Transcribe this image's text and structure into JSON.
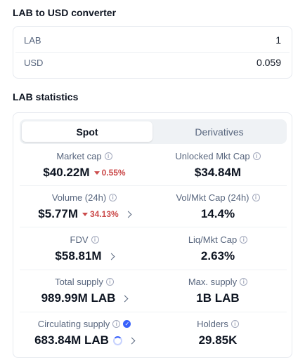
{
  "converter": {
    "title": "LAB to USD converter",
    "rows": [
      {
        "label": "LAB",
        "value": "1"
      },
      {
        "label": "USD",
        "value": "0.059"
      }
    ]
  },
  "stats": {
    "title": "LAB statistics",
    "tabs": [
      "Spot",
      "Derivatives"
    ],
    "cells": [
      {
        "label": "Market cap",
        "value": "$40.22M",
        "change": "0.55%"
      },
      {
        "label": "Unlocked Mkt Cap",
        "value": "$34.84M"
      },
      {
        "label": "Volume (24h)",
        "value": "$5.77M",
        "change": "34.13%"
      },
      {
        "label": "Vol/Mkt Cap (24h)",
        "value": "14.4%"
      },
      {
        "label": "FDV",
        "value": "$58.81M"
      },
      {
        "label": "Liq/Mkt Cap",
        "value": "2.63%"
      },
      {
        "label": "Total supply",
        "value": "989.99M LAB"
      },
      {
        "label": "Max. supply",
        "value": "1B LAB"
      },
      {
        "label": "Circulating supply",
        "value": "683.84M LAB"
      },
      {
        "label": "Holders",
        "value": "29.85K"
      }
    ]
  }
}
